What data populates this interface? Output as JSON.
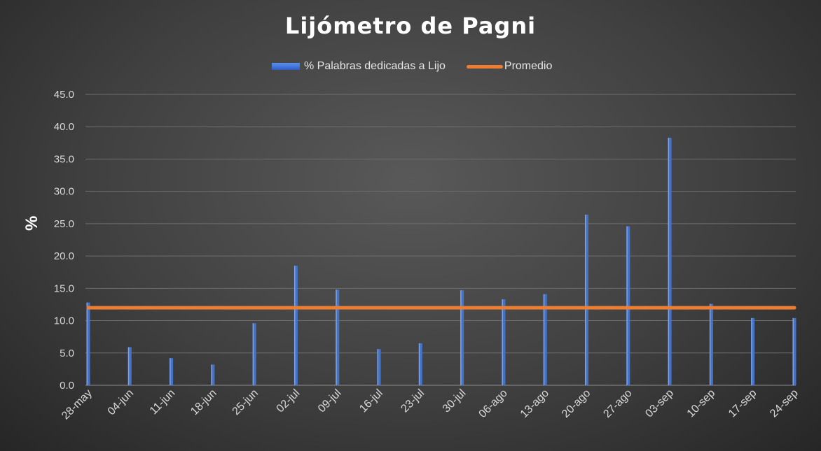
{
  "chart_data": {
    "type": "bar",
    "title": "Lijómetro de Pagni",
    "ylabel": "%",
    "xlabel": "",
    "ylim": [
      0,
      45
    ],
    "ytick_step": 5,
    "grid": true,
    "legend_position": "top",
    "categories": [
      "28-may",
      "04-jun",
      "11-jun",
      "18-jun",
      "25-jun",
      "02-jul",
      "09-jul",
      "16-jul",
      "23-jul",
      "30-jul",
      "06-ago",
      "13-ago",
      "20-ago",
      "27-ago",
      "03-sep",
      "10-sep",
      "17-sep",
      "24-sep"
    ],
    "series": [
      {
        "name": "% Palabras dedicadas a Lijo",
        "type": "bar",
        "color": "#4472c4",
        "values": [
          12.8,
          5.9,
          4.2,
          3.2,
          9.6,
          18.5,
          14.8,
          5.6,
          6.5,
          14.7,
          13.3,
          14.1,
          26.4,
          24.6,
          38.3,
          12.6,
          10.4,
          10.4
        ]
      },
      {
        "name": "Promedio",
        "type": "line",
        "color": "#ed7d31",
        "value": 12.0
      }
    ]
  }
}
